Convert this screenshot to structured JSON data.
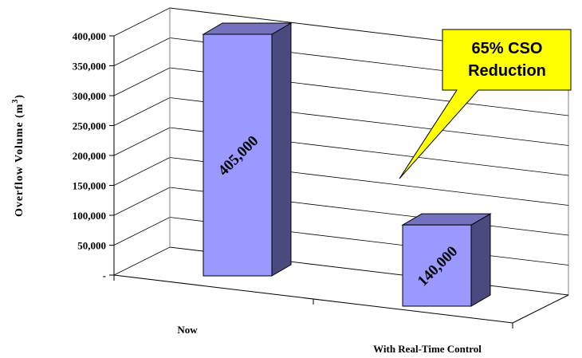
{
  "chart_data": {
    "type": "bar",
    "categories": [
      "Now",
      "With Real-Time Control"
    ],
    "values": [
      405000,
      140000
    ],
    "data_labels": [
      "405,000",
      "140,000"
    ],
    "title": "",
    "ylabel": "Overflow Volume (m",
    "ylabel_superscript": "3",
    "ylabel_close": ")",
    "ylim": [
      0,
      400000
    ],
    "yticks": [
      0,
      50000,
      100000,
      150000,
      200000,
      250000,
      300000,
      350000,
      400000
    ],
    "ytick_labels": [
      "-",
      "50,000",
      "100,000",
      "150,000",
      "200,000",
      "250,000",
      "300,000",
      "350,000",
      "400,000"
    ],
    "grid": true,
    "style": "3d-column",
    "bar_color": "#9999FF",
    "annotation": {
      "lines": [
        "65% CSO",
        "Reduction"
      ],
      "fill": "#FFFF00",
      "target_category": "With Real-Time Control"
    }
  }
}
